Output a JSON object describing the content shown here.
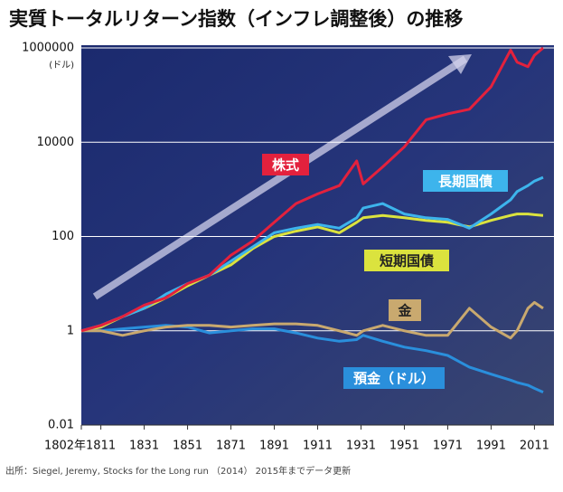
{
  "chart_data": {
    "type": "line",
    "title": "実質トータルリターン指数（インフレ調整後）の推移",
    "y_unit": "(ドル)",
    "source": "出所：Siegel, Jeremy, Stocks for the Long run （2014） 2015年までデータ更新",
    "log_scale": true,
    "grid": true,
    "x": [
      1802,
      1811,
      1821,
      1831,
      1841,
      1851,
      1861,
      1871,
      1881,
      1891,
      1901,
      1911,
      1921,
      1929,
      1932,
      1941,
      1951,
      1961,
      1971,
      1981,
      1991,
      2000,
      2003,
      2008,
      2011,
      2015
    ],
    "xlim": [
      1802,
      2020
    ],
    "xticks": [
      {
        "value": 1802,
        "label": "1802年"
      },
      1811,
      1831,
      1851,
      1871,
      1891,
      1911,
      1931,
      1951,
      1971,
      1991,
      2011
    ],
    "ylim": [
      0.01,
      1000000
    ],
    "yticks": [
      0.01,
      1,
      100,
      10000,
      1000000
    ],
    "series": [
      {
        "name": "株式",
        "color": "#e3213d",
        "values": [
          1,
          1.3,
          2,
          3.5,
          5,
          10,
          15,
          40,
          80,
          200,
          500,
          800,
          1200,
          4000,
          1300,
          3000,
          8000,
          30000,
          40000,
          50000,
          150000,
          900000,
          500000,
          400000,
          700000,
          1000000
        ]
      },
      {
        "name": "長期国債",
        "color": "#3db4ec",
        "values": [
          1,
          1.3,
          2,
          3,
          6,
          10,
          15,
          30,
          60,
          120,
          150,
          180,
          150,
          250,
          400,
          500,
          300,
          250,
          230,
          150,
          300,
          600,
          900,
          1200,
          1500,
          1800
        ]
      },
      {
        "name": "短期国債",
        "color": "#dbe33e",
        "values": [
          1,
          1.2,
          2,
          3,
          5,
          9,
          15,
          25,
          55,
          100,
          130,
          160,
          120,
          200,
          250,
          280,
          250,
          220,
          200,
          160,
          220,
          280,
          300,
          300,
          290,
          280
        ]
      },
      {
        "name": "金",
        "color": "#c9a96f",
        "values": [
          1,
          1,
          0.8,
          1,
          1.2,
          1.3,
          1.3,
          1.2,
          1.3,
          1.4,
          1.4,
          1.3,
          1,
          0.8,
          1,
          1.3,
          1,
          0.8,
          0.8,
          3,
          1.2,
          0.7,
          1,
          3,
          4,
          3
        ]
      },
      {
        "name": "預金（ドル）",
        "color": "#2a8fdc",
        "values": [
          1,
          1,
          1.1,
          1.2,
          1.3,
          1.2,
          0.9,
          1,
          1.1,
          1.1,
          0.9,
          0.7,
          0.6,
          0.65,
          0.8,
          0.6,
          0.45,
          0.38,
          0.3,
          0.17,
          0.12,
          0.09,
          0.08,
          0.07,
          0.06,
          0.05
        ]
      }
    ]
  }
}
